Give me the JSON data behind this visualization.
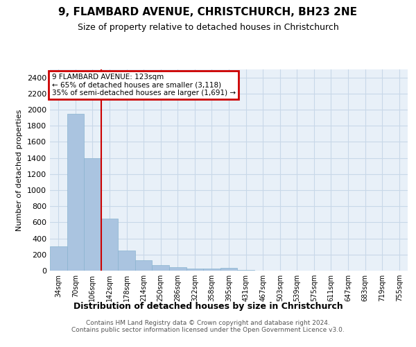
{
  "title": "9, FLAMBARD AVENUE, CHRISTCHURCH, BH23 2NE",
  "subtitle": "Size of property relative to detached houses in Christchurch",
  "xlabel": "Distribution of detached houses by size in Christchurch",
  "ylabel": "Number of detached properties",
  "categories": [
    "34sqm",
    "70sqm",
    "106sqm",
    "142sqm",
    "178sqm",
    "214sqm",
    "250sqm",
    "286sqm",
    "322sqm",
    "358sqm",
    "395sqm",
    "431sqm",
    "467sqm",
    "503sqm",
    "539sqm",
    "575sqm",
    "611sqm",
    "647sqm",
    "683sqm",
    "719sqm",
    "755sqm"
  ],
  "values": [
    305,
    1950,
    1400,
    650,
    250,
    130,
    65,
    45,
    30,
    30,
    35,
    5,
    2,
    1,
    1,
    0,
    0,
    0,
    0,
    0,
    0
  ],
  "bar_color": "#aac4e0",
  "bar_edgecolor": "#8ab4d0",
  "grid_color": "#c8d8e8",
  "bg_color": "#e8f0f8",
  "red_line_x": 2.5,
  "annotation_text": "9 FLAMBARD AVENUE: 123sqm\n← 65% of detached houses are smaller (3,118)\n35% of semi-detached houses are larger (1,691) →",
  "annotation_box_color": "#cc0000",
  "ylim": [
    0,
    2500
  ],
  "yticks": [
    0,
    200,
    400,
    600,
    800,
    1000,
    1200,
    1400,
    1600,
    1800,
    2000,
    2200,
    2400
  ],
  "footer_line1": "Contains HM Land Registry data © Crown copyright and database right 2024.",
  "footer_line2": "Contains public sector information licensed under the Open Government Licence v3.0."
}
